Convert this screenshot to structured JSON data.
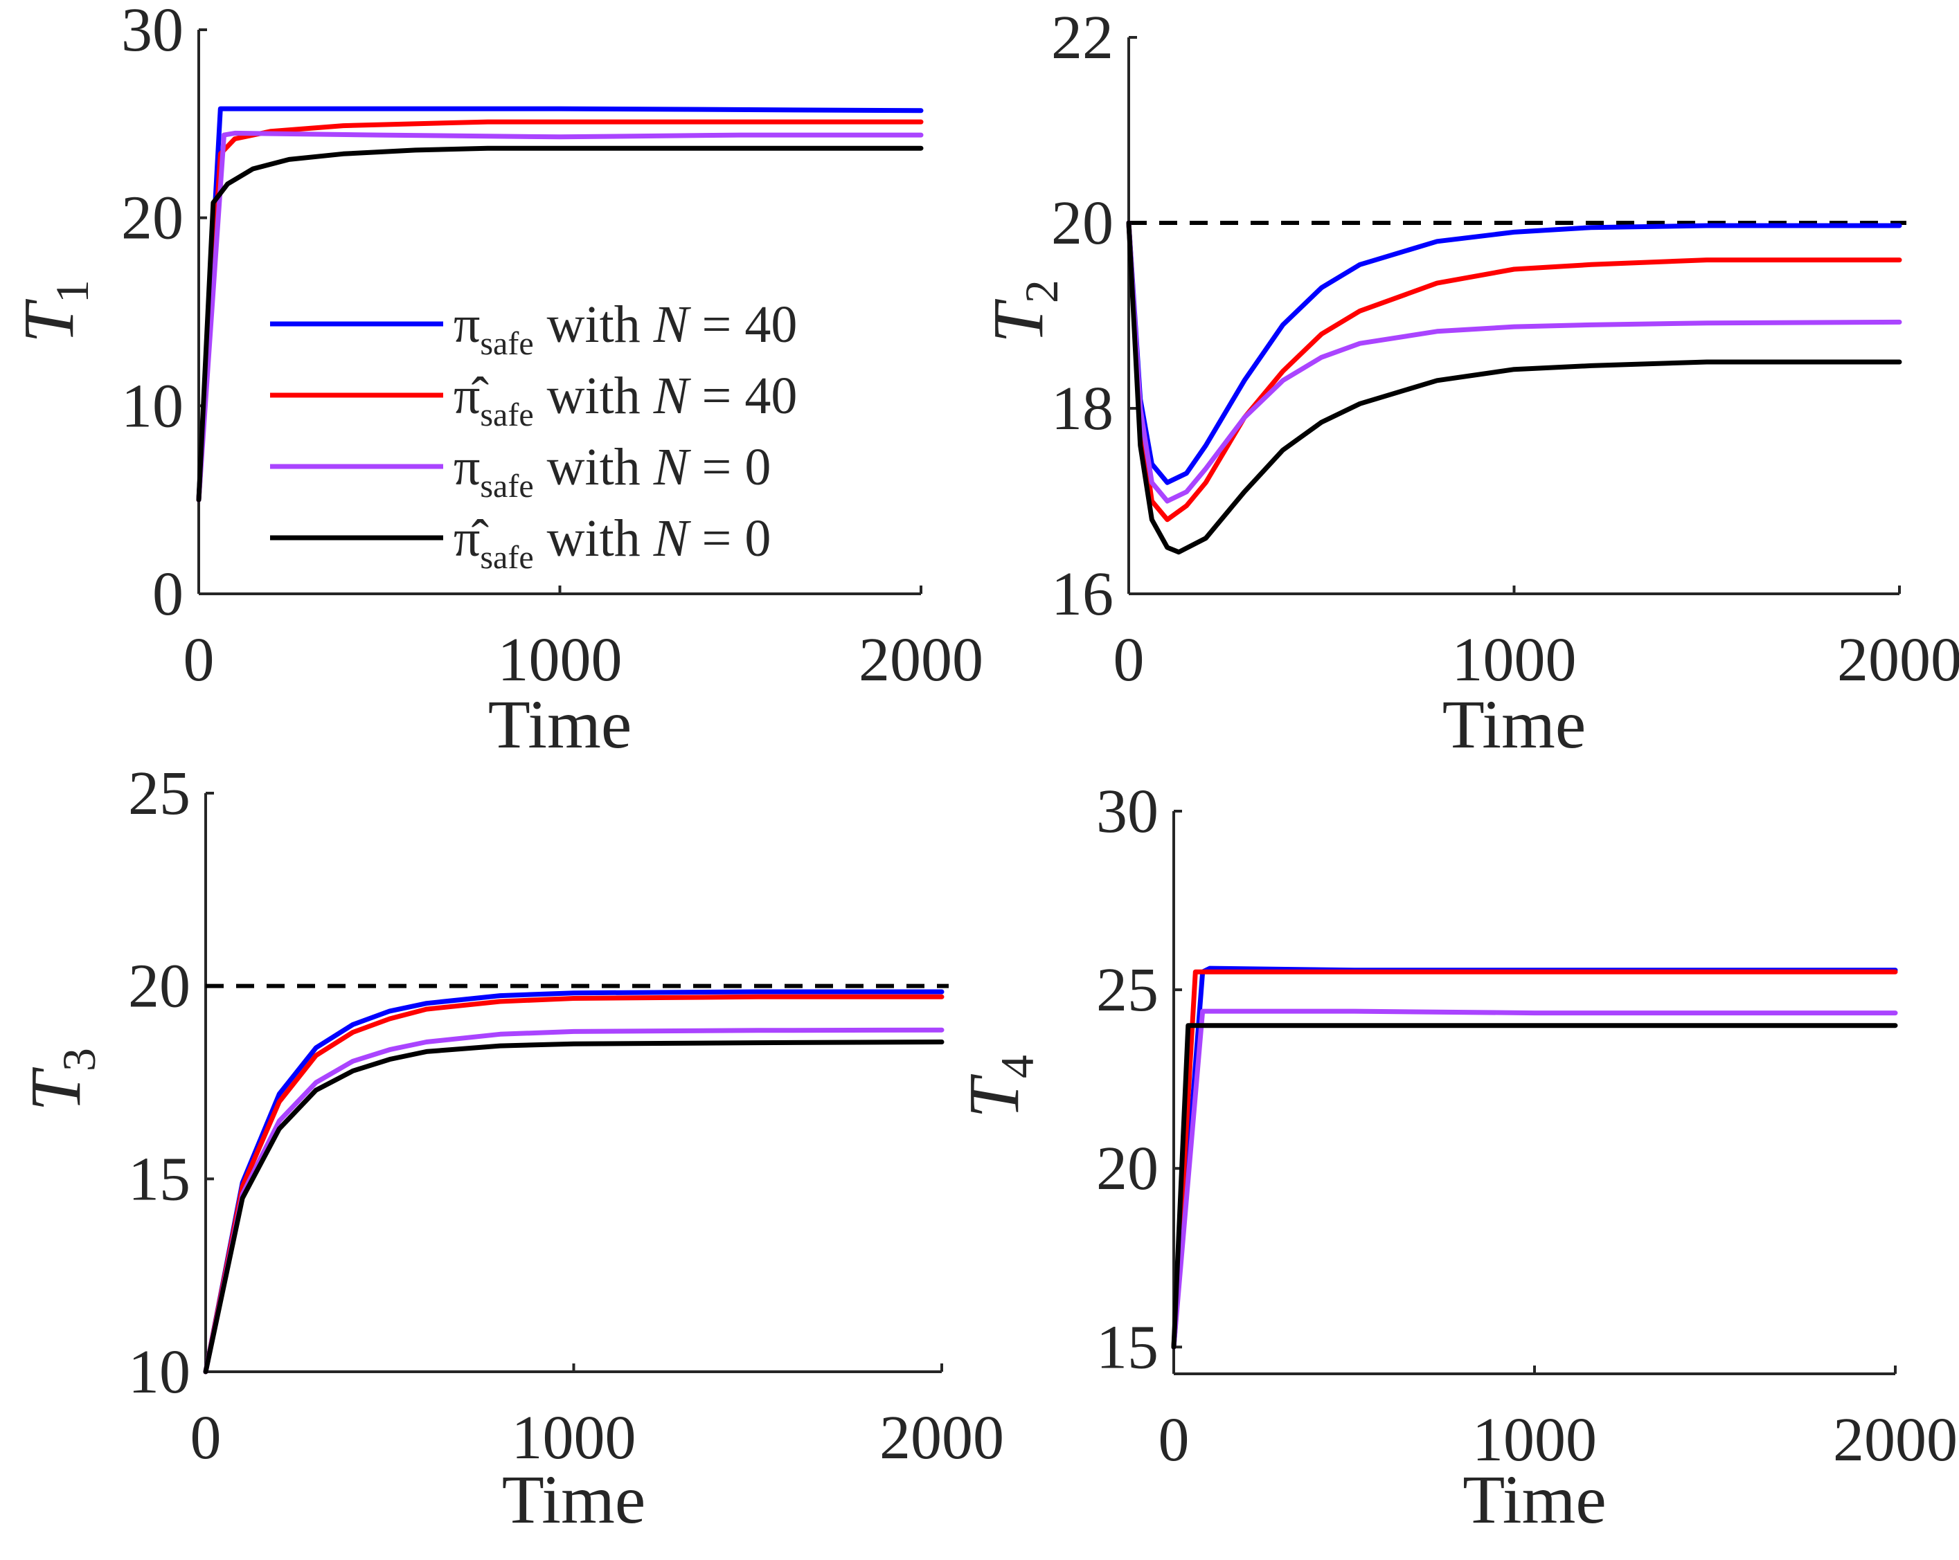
{
  "figure": {
    "legend": {
      "location": "upper-right inside T1 panel",
      "entries": [
        {
          "series": "pi_safe_N40",
          "symbol": "π",
          "hat": false,
          "sub": "safe",
          "text": " with ",
          "var": "N",
          "rest": " = 40",
          "color": "#0000ff"
        },
        {
          "series": "pihat_safe_N40",
          "symbol": "π̂",
          "hat": true,
          "sub": "safe",
          "text": " with ",
          "var": "N",
          "rest": " = 40",
          "color": "#ff0000"
        },
        {
          "series": "pi_safe_N0",
          "symbol": "π",
          "hat": false,
          "sub": "safe",
          "text": " with ",
          "var": "N",
          "rest": " = 0",
          "color": "#aa44ff"
        },
        {
          "series": "pihat_safe_N0",
          "symbol": "π̂",
          "hat": true,
          "sub": "safe",
          "text": " with ",
          "var": "N",
          "rest": " = 0",
          "color": "#000000"
        }
      ]
    }
  },
  "chart_data": [
    {
      "type": "line",
      "id": "T1",
      "ylabel": "T",
      "ylabel_sub": "1",
      "xlabel": "Time",
      "xlim": [
        0,
        2000
      ],
      "ylim": [
        0,
        30
      ],
      "xticks": [
        0,
        1000,
        2000
      ],
      "xtick_labels": [
        "0",
        "1000",
        "2000"
      ],
      "yticks": [
        0,
        10,
        20,
        30
      ],
      "ytick_labels": [
        "0",
        "10",
        "20",
        "30"
      ],
      "grid": false,
      "series": [
        {
          "name": "π_safe with N = 40",
          "color": "#0000ff",
          "x": [
            0,
            60,
            100,
            500,
            1000,
            2000
          ],
          "y": [
            5,
            25.8,
            25.8,
            25.8,
            25.8,
            25.7
          ]
        },
        {
          "name": "π̂_safe with N = 40",
          "color": "#ff0000",
          "x": [
            0,
            60,
            100,
            200,
            400,
            800,
            1200,
            2000
          ],
          "y": [
            5,
            23.4,
            24.2,
            24.6,
            24.9,
            25.1,
            25.1,
            25.1
          ]
        },
        {
          "name": "π_safe with N = 0",
          "color": "#aa44ff",
          "x": [
            0,
            70,
            100,
            500,
            1000,
            1500,
            2000
          ],
          "y": [
            5,
            24.4,
            24.5,
            24.4,
            24.3,
            24.4,
            24.4
          ]
        },
        {
          "name": "π̂_safe with N = 0",
          "color": "#000000",
          "x": [
            0,
            40,
            80,
            150,
            250,
            400,
            600,
            800,
            1200,
            2000
          ],
          "y": [
            5,
            20.8,
            21.8,
            22.6,
            23.1,
            23.4,
            23.6,
            23.7,
            23.7,
            23.7
          ]
        }
      ]
    },
    {
      "type": "line",
      "id": "T2",
      "ylabel": "T",
      "ylabel_sub": "2",
      "xlabel": "Time",
      "xlim": [
        0,
        2000
      ],
      "ylim": [
        16,
        22
      ],
      "xticks": [
        0,
        1000,
        2000
      ],
      "xtick_labels": [
        "0",
        "1000",
        "2000"
      ],
      "yticks": [
        16,
        18,
        20,
        22
      ],
      "ytick_labels": [
        "16",
        "18",
        "20",
        "22"
      ],
      "grid": false,
      "reference_line": {
        "y": 20,
        "style": "dashed",
        "color": "#000000"
      },
      "series": [
        {
          "name": "π_safe with N = 40",
          "color": "#0000ff",
          "x": [
            0,
            30,
            60,
            100,
            150,
            200,
            300,
            400,
            500,
            600,
            800,
            1000,
            1200,
            1500,
            2000
          ],
          "y": [
            20,
            18.1,
            17.4,
            17.2,
            17.3,
            17.6,
            18.3,
            18.9,
            19.3,
            19.55,
            19.8,
            19.9,
            19.95,
            19.97,
            19.97
          ]
        },
        {
          "name": "π̂_safe with N = 40",
          "color": "#ff0000",
          "x": [
            0,
            30,
            60,
            100,
            150,
            200,
            300,
            400,
            500,
            600,
            800,
            1000,
            1200,
            1500,
            2000
          ],
          "y": [
            20,
            17.9,
            17.0,
            16.8,
            16.95,
            17.2,
            17.9,
            18.4,
            18.8,
            19.05,
            19.35,
            19.5,
            19.55,
            19.6,
            19.6
          ]
        },
        {
          "name": "π_safe with N = 0",
          "color": "#aa44ff",
          "x": [
            0,
            30,
            60,
            100,
            150,
            200,
            300,
            400,
            500,
            600,
            800,
            1000,
            1200,
            1500,
            2000
          ],
          "y": [
            20,
            18.0,
            17.2,
            17.0,
            17.1,
            17.35,
            17.9,
            18.3,
            18.55,
            18.7,
            18.83,
            18.88,
            18.9,
            18.92,
            18.93
          ]
        },
        {
          "name": "π̂_safe with N = 0",
          "color": "#000000",
          "x": [
            0,
            30,
            60,
            100,
            130,
            200,
            300,
            400,
            500,
            600,
            800,
            1000,
            1200,
            1500,
            2000
          ],
          "y": [
            20,
            17.6,
            16.8,
            16.5,
            16.45,
            16.6,
            17.1,
            17.55,
            17.85,
            18.05,
            18.3,
            18.42,
            18.46,
            18.5,
            18.5
          ]
        }
      ]
    },
    {
      "type": "line",
      "id": "T3",
      "ylabel": "T",
      "ylabel_sub": "3",
      "xlabel": "Time",
      "xlim": [
        0,
        2000
      ],
      "ylim": [
        10,
        25
      ],
      "xticks": [
        0,
        1000,
        2000
      ],
      "xtick_labels": [
        "0",
        "1000",
        "2000"
      ],
      "yticks": [
        10,
        15,
        20,
        25
      ],
      "ytick_labels": [
        "10",
        "15",
        "20",
        "25"
      ],
      "grid": false,
      "reference_line": {
        "y": 20,
        "style": "dashed",
        "color": "#000000"
      },
      "series": [
        {
          "name": "π_safe with N = 40",
          "color": "#0000ff",
          "x": [
            0,
            100,
            200,
            300,
            400,
            500,
            600,
            800,
            1000,
            1500,
            2000
          ],
          "y": [
            10,
            14.9,
            17.2,
            18.4,
            19.0,
            19.35,
            19.55,
            19.75,
            19.82,
            19.85,
            19.85
          ]
        },
        {
          "name": "π̂_safe with N = 40",
          "color": "#ff0000",
          "x": [
            0,
            100,
            200,
            300,
            400,
            500,
            600,
            800,
            1000,
            1500,
            2000
          ],
          "y": [
            10,
            14.8,
            17.0,
            18.2,
            18.8,
            19.15,
            19.4,
            19.6,
            19.68,
            19.72,
            19.72
          ]
        },
        {
          "name": "π_safe with N = 0",
          "color": "#aa44ff",
          "x": [
            0,
            100,
            200,
            300,
            400,
            500,
            600,
            800,
            1000,
            1500,
            2000
          ],
          "y": [
            10,
            14.6,
            16.5,
            17.5,
            18.05,
            18.35,
            18.55,
            18.75,
            18.82,
            18.85,
            18.86
          ]
        },
        {
          "name": "π̂_safe with N = 0",
          "color": "#000000",
          "x": [
            0,
            100,
            200,
            300,
            400,
            500,
            600,
            800,
            1000,
            1500,
            2000
          ],
          "y": [
            10,
            14.5,
            16.3,
            17.3,
            17.8,
            18.1,
            18.3,
            18.45,
            18.5,
            18.53,
            18.55
          ]
        }
      ]
    },
    {
      "type": "line",
      "id": "T4",
      "ylabel": "T",
      "ylabel_sub": "4",
      "xlabel": "Time",
      "xlim": [
        0,
        2000
      ],
      "ylim": [
        14.25,
        30
      ],
      "xticks": [
        0,
        1000,
        2000
      ],
      "xtick_labels": [
        "0",
        "1000",
        "2000"
      ],
      "yticks": [
        15,
        20,
        25,
        30
      ],
      "ytick_labels": [
        "15",
        "20",
        "25",
        "30"
      ],
      "grid": false,
      "series": [
        {
          "name": "π_safe with N = 40",
          "color": "#0000ff",
          "x": [
            0,
            80,
            100,
            500,
            1000,
            1500,
            2000
          ],
          "y": [
            15,
            25.5,
            25.6,
            25.55,
            25.55,
            25.55,
            25.55
          ]
        },
        {
          "name": "π̂_safe with N = 40",
          "color": "#ff0000",
          "x": [
            0,
            60,
            100,
            500,
            1000,
            1500,
            2000
          ],
          "y": [
            15,
            25.5,
            25.5,
            25.5,
            25.5,
            25.5,
            25.5
          ]
        },
        {
          "name": "π_safe with N = 0",
          "color": "#aa44ff",
          "x": [
            0,
            80,
            100,
            500,
            1000,
            1500,
            2000
          ],
          "y": [
            15,
            24.4,
            24.4,
            24.4,
            24.35,
            24.35,
            24.35
          ]
        },
        {
          "name": "π̂_safe with N = 0",
          "color": "#000000",
          "x": [
            0,
            40,
            100,
            500,
            1000,
            1500,
            2000
          ],
          "y": [
            15,
            24.0,
            24.0,
            24.0,
            24.0,
            24.0,
            24.0
          ]
        }
      ]
    }
  ]
}
